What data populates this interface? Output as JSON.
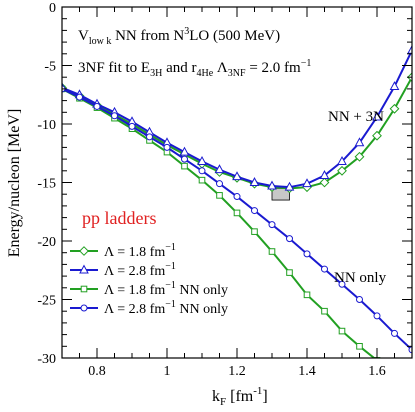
{
  "chart_data": {
    "type": "line",
    "xlabel": "k",
    "xlabel_sub": "F",
    "xlabel_unit": "[fm",
    "xlabel_unit_sup": "-1",
    "xlabel_unit_end": "]",
    "ylabel": "Energy/nucleon [MeV]",
    "xlim": [
      0.7,
      1.7
    ],
    "ylim": [
      -30,
      0
    ],
    "xticks": [
      0.8,
      1.0,
      1.2,
      1.4,
      1.6
    ],
    "xtick_labels": [
      "0.8",
      "1",
      "1.2",
      "1.4",
      "1.6"
    ],
    "yticks": [
      0,
      -5,
      -10,
      -15,
      -20,
      -25,
      -30
    ],
    "ytick_labels": [
      "0",
      "-5",
      "-10",
      "-15",
      "-20",
      "-25",
      "-30"
    ],
    "grid": false,
    "annotations": {
      "line1": {
        "v": "V",
        "v_sub": "low k",
        "mid": " NN  from N",
        "sup": "3",
        "end": "LO (500 MeV)"
      },
      "line2": {
        "a": "3NF fit to E",
        "a_sub": "3H",
        "b": " and r",
        "b_sub": "4He",
        "c": "  Λ",
        "c_sub": "3NF",
        "d": " = 2.0 fm",
        "d_sup": "−1"
      },
      "nn3n": "NN + 3N",
      "nnonly": "NN only",
      "legend_title": "pp ladders"
    },
    "legend_placement": "bottom-left",
    "legend": [
      {
        "a": "Λ = 1.8 fm",
        "sup": "−1",
        "b": ""
      },
      {
        "a": "Λ = 2.8 fm",
        "sup": "−1",
        "b": ""
      },
      {
        "a": "Λ = 1.8 fm",
        "sup": "−1",
        "b": " NN only"
      },
      {
        "a": "Λ = 2.8 fm",
        "sup": "−1",
        "b": " NN only"
      }
    ],
    "empirical_box": {
      "x": [
        1.3,
        1.35
      ],
      "y": [
        -16.5,
        -15.5
      ]
    },
    "series": [
      {
        "color": "#22a022",
        "marker": "diamond",
        "x": [
          0.7,
          0.75,
          0.8,
          0.85,
          0.9,
          0.95,
          1.0,
          1.05,
          1.1,
          1.15,
          1.2,
          1.25,
          1.3,
          1.35,
          1.4,
          1.45,
          1.5,
          1.55,
          1.6,
          1.65,
          1.7
        ],
        "y": [
          -6.9,
          -7.6,
          -8.4,
          -9.2,
          -10.0,
          -10.9,
          -11.8,
          -12.6,
          -13.4,
          -14.1,
          -14.6,
          -15.1,
          -15.4,
          -15.5,
          -15.4,
          -15.0,
          -14.0,
          -12.8,
          -11.0,
          -8.7,
          -6.0
        ]
      },
      {
        "color": "#1a1ad0",
        "marker": "triangle",
        "x": [
          0.7,
          0.75,
          0.8,
          0.85,
          0.9,
          0.95,
          1.0,
          1.05,
          1.1,
          1.15,
          1.2,
          1.25,
          1.3,
          1.35,
          1.4,
          1.45,
          1.5,
          1.55,
          1.6,
          1.65,
          1.7
        ],
        "y": [
          -6.9,
          -7.5,
          -8.3,
          -9.0,
          -9.8,
          -10.7,
          -11.6,
          -12.4,
          -13.2,
          -13.9,
          -14.5,
          -15.0,
          -15.3,
          -15.4,
          -15.1,
          -14.4,
          -13.2,
          -11.6,
          -9.4,
          -6.8,
          -3.7
        ]
      },
      {
        "color": "#22a022",
        "marker": "square",
        "x": [
          0.7,
          0.75,
          0.8,
          0.85,
          0.9,
          0.95,
          1.0,
          1.05,
          1.1,
          1.15,
          1.2,
          1.25,
          1.3,
          1.35,
          1.4,
          1.45,
          1.5,
          1.55,
          1.6,
          1.65
        ],
        "y": [
          -7.0,
          -7.8,
          -8.6,
          -9.5,
          -10.4,
          -11.4,
          -12.4,
          -13.6,
          -14.8,
          -16.1,
          -17.6,
          -19.2,
          -20.9,
          -22.7,
          -24.6,
          -26.0,
          -27.7,
          -29.0,
          -30.2,
          -31.2
        ]
      },
      {
        "color": "#1a1ad0",
        "marker": "circle",
        "x": [
          0.7,
          0.75,
          0.8,
          0.85,
          0.9,
          0.95,
          1.0,
          1.05,
          1.1,
          1.15,
          1.2,
          1.25,
          1.3,
          1.35,
          1.4,
          1.45,
          1.5,
          1.55,
          1.6,
          1.65,
          1.7
        ],
        "y": [
          -7.0,
          -7.7,
          -8.5,
          -9.3,
          -10.2,
          -11.1,
          -12.0,
          -13.0,
          -14.0,
          -15.1,
          -16.2,
          -17.4,
          -18.6,
          -19.8,
          -21.1,
          -22.4,
          -23.7,
          -25.0,
          -26.4,
          -27.9,
          -29.3
        ]
      }
    ]
  }
}
